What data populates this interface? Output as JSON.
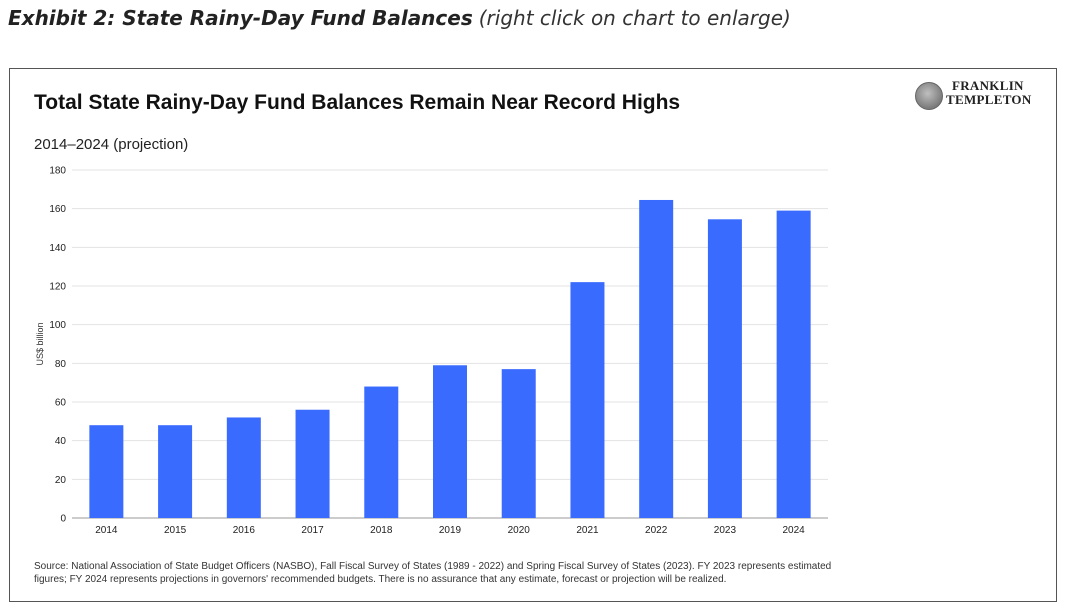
{
  "exhibit": {
    "title": "Exhibit 2: State Rainy-Day Fund Balances",
    "note": "(right click on chart to enlarge)"
  },
  "logo": {
    "line1": "FRANKLIN",
    "line2": "TEMPLETON"
  },
  "colors": {
    "bar": "#3a6bff",
    "grid": "#e3e3e3",
    "axis": "#999999"
  },
  "chart_data": {
    "type": "bar",
    "title": "Total State Rainy-Day Fund Balances Remain Near Record Highs",
    "subtitle": "2014–2024 (projection)",
    "xlabel": "",
    "ylabel": "US$ billion",
    "categories": [
      "2014",
      "2015",
      "2016",
      "2017",
      "2018",
      "2019",
      "2020",
      "2021",
      "2022",
      "2023",
      "2024"
    ],
    "values": [
      48,
      48,
      52,
      56,
      68,
      79,
      77,
      122,
      164.5,
      154.5,
      159
    ],
    "ylim": [
      0,
      180
    ],
    "yticks": [
      0,
      20,
      40,
      60,
      80,
      100,
      120,
      140,
      160,
      180
    ],
    "grid": true,
    "legend": "none"
  },
  "source": "Source: National Association of State Budget Officers (NASBO), Fall Fiscal Survey of States (1989 - 2022) and Spring Fiscal Survey of States (2023). FY 2023 represents estimated figures; FY 2024 represents projections in governors' recommended budgets. There is no assurance that any estimate, forecast or projection will be realized."
}
